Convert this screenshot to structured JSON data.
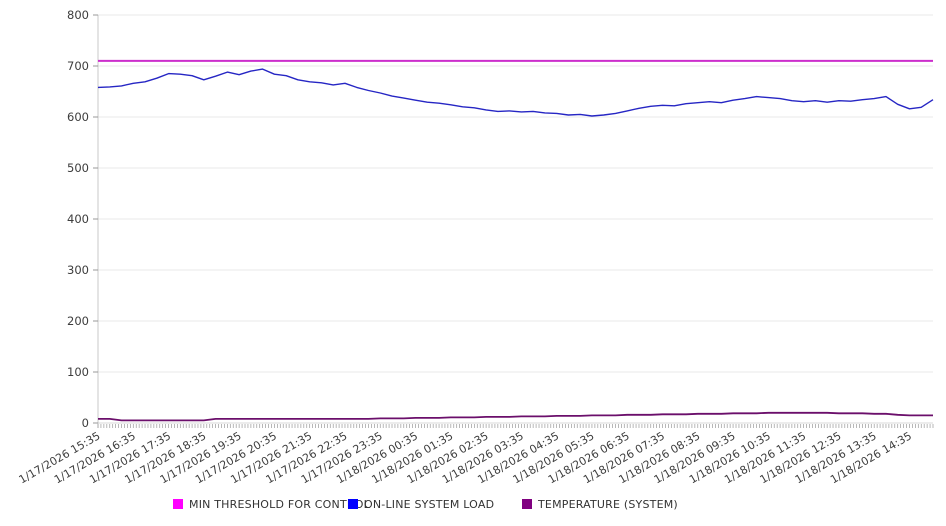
{
  "chart_data": {
    "type": "line",
    "title": "",
    "xlabel": "",
    "ylabel": "",
    "ylim": [
      0,
      800
    ],
    "y_ticks": [
      0,
      100,
      200,
      300,
      400,
      500,
      600,
      700,
      800
    ],
    "grid": "horizontal",
    "legend_position": "bottom",
    "x_minor_ticks_per_point": 4,
    "points_per_hour": 3,
    "x_tick_labels": [
      "1/17/2026 15:35",
      "1/17/2026 16:35",
      "1/17/2026 17:35",
      "1/17/2026 18:35",
      "1/17/2026 19:35",
      "1/17/2026 20:35",
      "1/17/2026 21:35",
      "1/17/2026 22:35",
      "1/17/2026 23:35",
      "1/18/2026 00:35",
      "1/18/2026 01:35",
      "1/18/2026 02:35",
      "1/18/2026 03:35",
      "1/18/2026 04:35",
      "1/18/2026 05:35",
      "1/18/2026 06:35",
      "1/18/2026 07:35",
      "1/18/2026 08:35",
      "1/18/2026 09:35",
      "1/18/2026 10:35",
      "1/18/2026 11:35",
      "1/18/2026 12:35",
      "1/18/2026 13:35",
      "1/18/2026 14:35"
    ],
    "series": [
      {
        "name": "MIN THRESHOLD FOR CONTROL",
        "legend_color": "#ff00ff",
        "line_color": "#cc2ecc",
        "line_width": 2,
        "type": "constant",
        "value": 710
      },
      {
        "name": "ON-LINE SYSTEM LOAD",
        "legend_color": "#0000ff",
        "line_color": "#2626c4",
        "line_width": 1.4,
        "type": "line",
        "values": [
          658,
          659,
          661,
          666,
          669,
          676,
          685,
          684,
          681,
          673,
          680,
          688,
          683,
          690,
          694,
          684,
          681,
          673,
          669,
          667,
          663,
          666,
          658,
          652,
          647,
          641,
          637,
          633,
          629,
          627,
          624,
          620,
          618,
          614,
          611,
          612,
          610,
          611,
          608,
          607,
          604,
          605,
          602,
          604,
          607,
          612,
          617,
          621,
          623,
          622,
          626,
          628,
          630,
          628,
          633,
          636,
          640,
          638,
          636,
          632,
          630,
          632,
          629,
          632,
          631,
          634,
          636,
          640,
          625,
          616,
          619,
          634
        ]
      },
      {
        "name": "TEMPERATURE (SYSTEM)",
        "legend_color": "#800080",
        "line_color": "#6b0f6b",
        "line_width": 1.8,
        "type": "line",
        "values": [
          8,
          8,
          5,
          5,
          5,
          5,
          5,
          5,
          5,
          5,
          8,
          8,
          8,
          8,
          8,
          8,
          8,
          8,
          8,
          8,
          8,
          8,
          8,
          8,
          9,
          9,
          9,
          10,
          10,
          10,
          11,
          11,
          11,
          12,
          12,
          12,
          13,
          13,
          13,
          14,
          14,
          14,
          15,
          15,
          15,
          16,
          16,
          16,
          17,
          17,
          17,
          18,
          18,
          18,
          19,
          19,
          19,
          20,
          20,
          20,
          20,
          20,
          20,
          19,
          19,
          19,
          18,
          18,
          16,
          15,
          15,
          15
        ]
      }
    ],
    "colors": {
      "gridline": "#e8e8e8",
      "zero_line": "#d9d9d9",
      "axis_line": "#c8c8c8",
      "tick": "#999999",
      "axis_text": "#3d3d3d"
    }
  }
}
